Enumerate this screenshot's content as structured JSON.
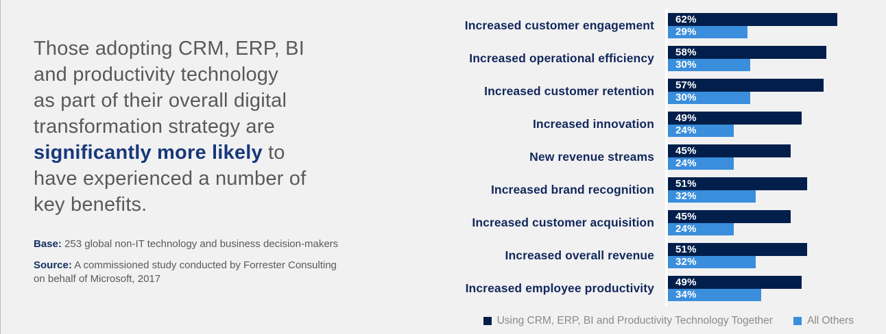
{
  "left_panel": {
    "headline": {
      "pre": "Those adopting CRM, ERP, BI\nand productivity technology\nas part of their overall digital\ntransformation strategy are\n",
      "highlight": "significantly more likely",
      "post": " to\nhave experienced a number of\nkey benefits."
    },
    "base_label": "Base:",
    "base_text": " 253 global non-IT technology and business decision-makers",
    "source_label": "Source:",
    "source_text": " A commissioned study conducted by Forrester Consulting\non behalf of Microsoft, 2017"
  },
  "chart_data": {
    "type": "bar",
    "orientation": "horizontal",
    "categories": [
      "Increased customer engagement",
      "Increased operational efficiency",
      "Increased customer retention",
      "Increased innovation",
      "New revenue streams",
      "Increased brand recognition",
      "Increased customer acquisition",
      "Increased overall revenue",
      "Increased employee productivity"
    ],
    "series": [
      {
        "name": "Using CRM, ERP, BI and Productivity Technology Together",
        "color": "#021F4B",
        "values": [
          62,
          58,
          57,
          49,
          45,
          51,
          45,
          51,
          49
        ]
      },
      {
        "name": "All Others",
        "color": "#3A8EDC",
        "values": [
          29,
          30,
          30,
          24,
          24,
          32,
          24,
          32,
          34
        ]
      }
    ],
    "value_suffix": "%",
    "xlim": [
      0,
      80
    ],
    "grid": false,
    "legend_position": "bottom-right"
  },
  "colors": {
    "background": "#F1F1F2",
    "paragraph_text": "#595959",
    "highlight_text": "#17387B",
    "category_label": "#12275B",
    "bar_value_text": "#FFFFFF",
    "legend_text": "#8A8A8A",
    "axis_line": "#FDFDFD"
  }
}
